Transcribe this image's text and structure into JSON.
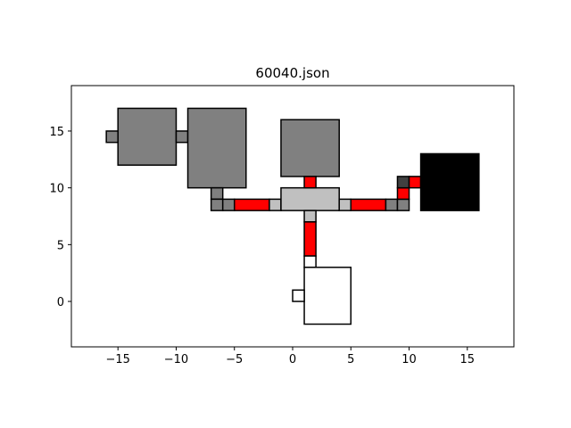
{
  "chart_data": {
    "type": "floor-plan",
    "title": "60040.json",
    "xlim": [
      -19,
      19
    ],
    "ylim": [
      -4,
      19
    ],
    "grid": false,
    "xticks": [
      -15,
      -10,
      -5,
      0,
      5,
      10,
      15
    ],
    "yticks": [
      0,
      5,
      10,
      15
    ],
    "xtick_labels": [
      "−15",
      "−10",
      "−5",
      "0",
      "5",
      "10",
      "15"
    ],
    "ytick_labels": [
      "0",
      "5",
      "10",
      "15"
    ],
    "rooms": [
      {
        "x0": -15,
        "y0": 12,
        "x1": -10,
        "y1": 17,
        "color": "#808080"
      },
      {
        "x0": -16,
        "y0": 14,
        "x1": -15,
        "y1": 15,
        "color": "#808080"
      },
      {
        "x0": -10,
        "y0": 14,
        "x1": -9,
        "y1": 15,
        "color": "#808080"
      },
      {
        "x0": -9,
        "y0": 10,
        "x1": -4,
        "y1": 17,
        "color": "#808080"
      },
      {
        "x0": -7,
        "y0": 9,
        "x1": -6,
        "y1": 10,
        "color": "#808080"
      },
      {
        "x0": -7,
        "y0": 8,
        "x1": -6,
        "y1": 9,
        "color": "#808080"
      },
      {
        "x0": -6,
        "y0": 8,
        "x1": -5,
        "y1": 9,
        "color": "#808080"
      },
      {
        "x0": -5,
        "y0": 8,
        "x1": -2,
        "y1": 9,
        "color": "#ff0000"
      },
      {
        "x0": -2,
        "y0": 8,
        "x1": -1,
        "y1": 9,
        "color": "#c0c0c0"
      },
      {
        "x0": -1,
        "y0": 8,
        "x1": 4,
        "y1": 10,
        "color": "#c0c0c0"
      },
      {
        "x0": -1,
        "y0": 11,
        "x1": 4,
        "y1": 16,
        "color": "#808080"
      },
      {
        "x0": 1,
        "y0": 10,
        "x1": 2,
        "y1": 11,
        "color": "#ff0000"
      },
      {
        "x0": 4,
        "y0": 8,
        "x1": 5,
        "y1": 9,
        "color": "#c0c0c0"
      },
      {
        "x0": 5,
        "y0": 8,
        "x1": 8,
        "y1": 9,
        "color": "#ff0000"
      },
      {
        "x0": 8,
        "y0": 8,
        "x1": 9,
        "y1": 9,
        "color": "#808080"
      },
      {
        "x0": 9,
        "y0": 8,
        "x1": 10,
        "y1": 9,
        "color": "#808080"
      },
      {
        "x0": 9,
        "y0": 9,
        "x1": 10,
        "y1": 10,
        "color": "#ff0000"
      },
      {
        "x0": 9,
        "y0": 10,
        "x1": 10,
        "y1": 11,
        "color": "#404040"
      },
      {
        "x0": 10,
        "y0": 10,
        "x1": 11,
        "y1": 11,
        "color": "#ff0000"
      },
      {
        "x0": 11,
        "y0": 8,
        "x1": 16,
        "y1": 13,
        "color": "#000000"
      },
      {
        "x0": 1,
        "y0": 7,
        "x1": 2,
        "y1": 8,
        "color": "#c0c0c0"
      },
      {
        "x0": 1,
        "y0": 4,
        "x1": 2,
        "y1": 7,
        "color": "#ff0000"
      },
      {
        "x0": 1,
        "y0": 3,
        "x1": 2,
        "y1": 4,
        "color": "#ffffff"
      },
      {
        "x0": 1,
        "y0": -2,
        "x1": 5,
        "y1": 3,
        "color": "#ffffff"
      },
      {
        "x0": 0,
        "y0": 0,
        "x1": 1,
        "y1": 1,
        "color": "#ffffff"
      }
    ]
  }
}
